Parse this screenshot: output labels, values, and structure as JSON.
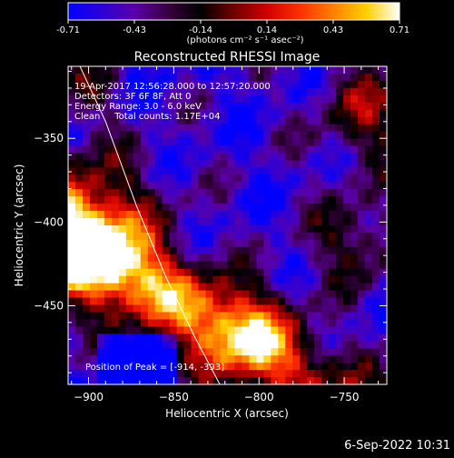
{
  "colorbar": {
    "ticks": [
      "-0.71",
      "-0.43",
      "-0.14",
      "0.14",
      "0.43",
      "0.71"
    ],
    "unit_label": "(photons cm⁻² s⁻¹ asec⁻²)",
    "colors": [
      "#0000ff",
      "#2c00d8",
      "#5a00a8",
      "#3a0040",
      "#000000",
      "#700000",
      "#d00000",
      "#ff3000",
      "#ff8000",
      "#ffd000",
      "#ffffff"
    ]
  },
  "chart_data": {
    "type": "heatmap",
    "title": "Reconstructed RHESSI Image",
    "xlabel": "Heliocentric X (arcsec)",
    "ylabel": "Heliocentric Y (arcsec)",
    "xlim": [
      -912,
      -725
    ],
    "ylim": [
      -497,
      -307
    ],
    "x_ticks": [
      -900,
      -850,
      -800,
      -750
    ],
    "y_ticks": [
      -350,
      -400,
      -450
    ],
    "x_tick_labels": [
      "−900",
      "−850",
      "−800",
      "−750"
    ],
    "y_tick_labels": [
      "−350",
      "−400",
      "−450"
    ],
    "color_range": [
      -0.71,
      0.71
    ],
    "info_lines": [
      "19-Apr-2017 12:56:28.000 to 12:57:20.000",
      "Detectors: 3F 6F 8F, Att 0",
      "Energy Range: 3.0 - 6.0 keV",
      "Clean     Total counts: 1.17E+04"
    ],
    "peak_label": "Position of Peak = [",
    "peak_x": "-914",
    "peak_y": "-393",
    "limb_curve": [
      [
        -905,
        -307
      ],
      [
        -890,
        -340
      ],
      [
        -872,
        -390
      ],
      [
        -855,
        -432
      ],
      [
        -838,
        -468
      ],
      [
        -823,
        -497
      ]
    ]
  },
  "footer": {
    "date": "6-Sep-2022 10:31"
  }
}
